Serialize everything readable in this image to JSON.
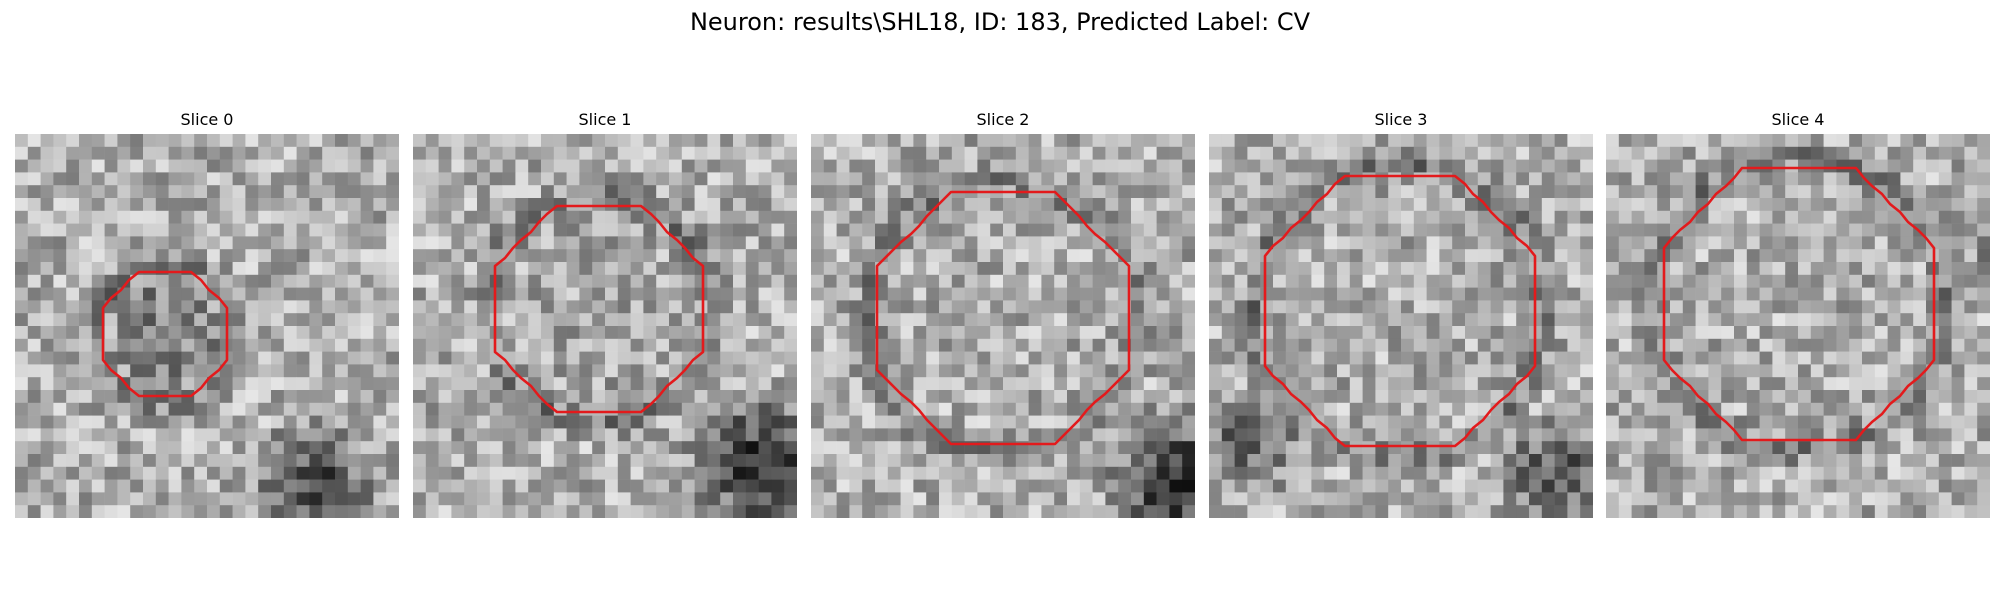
{
  "figure": {
    "title": "Neuron: results\\SHL18, ID: 183, Predicted Label: CV"
  },
  "contour_color": "#e31a1c",
  "panels": [
    {
      "title": "Slice 0"
    },
    {
      "title": "Slice 1"
    },
    {
      "title": "Slice 2"
    },
    {
      "title": "Slice 3"
    },
    {
      "title": "Slice 4"
    }
  ]
}
